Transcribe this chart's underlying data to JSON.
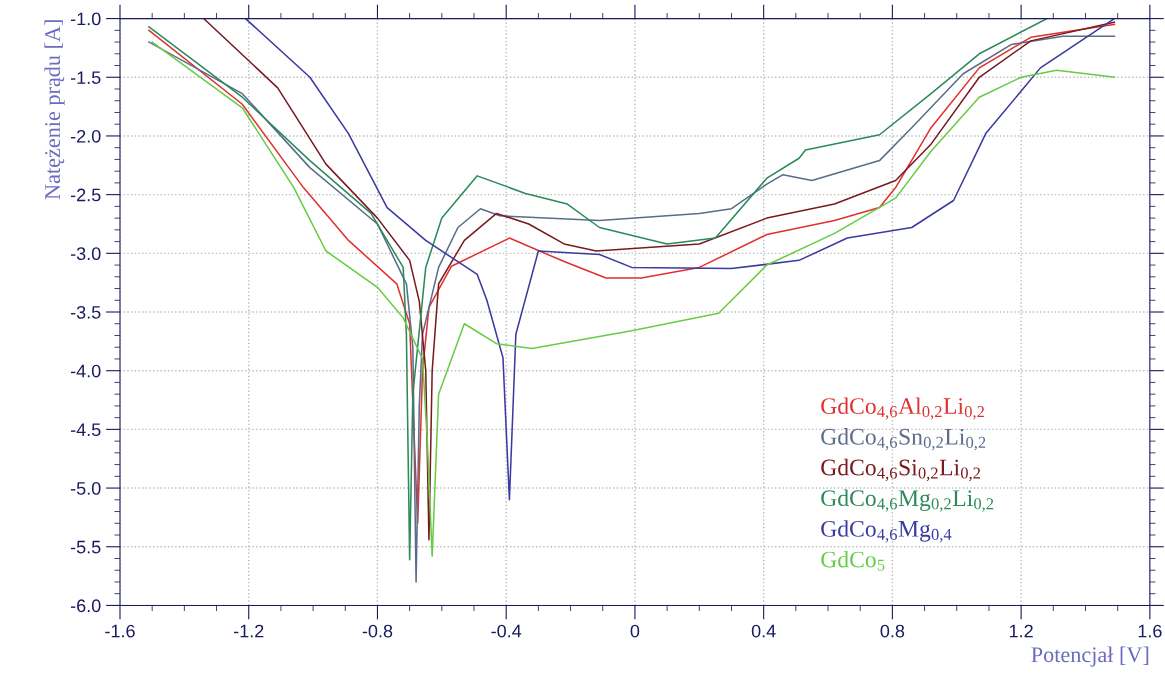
{
  "chart_data": {
    "type": "line",
    "xlabel": "Potencjał [V]",
    "ylabel": "Natężenie prądu [A]",
    "xlim": [
      -1.6,
      1.6
    ],
    "ylim": [
      -6.0,
      -1.0
    ],
    "xticks": [
      -1.6,
      -1.2,
      -0.8,
      -0.4,
      0,
      0.4,
      0.8,
      1.2,
      1.6
    ],
    "yticks": [
      {
        "value": -6,
        "label": "-6.0"
      },
      -5.5,
      {
        "value": -5,
        "label": "-5.0"
      },
      -4.5,
      {
        "value": -4,
        "label": "-4.0"
      },
      -3.5,
      {
        "value": -3,
        "label": "-3.0"
      },
      -2.5,
      {
        "value": -2,
        "label": "-2.0"
      },
      -1.5,
      {
        "value": -1,
        "label": "-1.0"
      }
    ],
    "grid": true,
    "legend": "bottom right",
    "marker": "none",
    "line_style": "solid",
    "series": [
      {
        "name": "GdCo$_{4,6}$Al$_{0,2}$Li$_{0,2}$",
        "color": "#e03030",
        "x": [
          -1.51,
          -1.22,
          -1.03,
          -0.89,
          -0.74,
          -0.7,
          -0.675,
          -0.66,
          -0.64,
          -0.57,
          -0.39,
          -0.22,
          -0.09,
          0.02,
          0.2,
          0.41,
          0.62,
          0.76,
          0.81,
          0.92,
          1.07,
          1.23,
          1.49
        ],
        "values": [
          -1.1,
          -1.73,
          -2.44,
          -2.89,
          -3.26,
          -3.6,
          -5.3,
          -4.0,
          -3.46,
          -3.11,
          -2.87,
          -3.07,
          -3.21,
          -3.21,
          -3.12,
          -2.84,
          -2.72,
          -2.61,
          -2.44,
          -1.93,
          -1.42,
          -1.16,
          -1.05
        ]
      },
      {
        "name": "GdCo$_{4,6}$Sn$_{0,2}$Li$_{0,2}$",
        "color": "#5a6c8a",
        "x": [
          -1.51,
          -1.22,
          -1.01,
          -0.8,
          -0.71,
          -0.69,
          -0.68,
          -0.67,
          -0.66,
          -0.61,
          -0.55,
          -0.48,
          -0.42,
          -0.11,
          0.2,
          0.3,
          0.41,
          0.46,
          0.55,
          0.76,
          0.86,
          1.02,
          1.17,
          1.33,
          1.49
        ],
        "values": [
          -1.2,
          -1.64,
          -2.27,
          -2.75,
          -3.26,
          -3.8,
          -5.8,
          -4.3,
          -3.69,
          -3.12,
          -2.78,
          -2.62,
          -2.68,
          -2.72,
          -2.66,
          -2.62,
          -2.41,
          -2.33,
          -2.38,
          -2.21,
          -1.93,
          -1.47,
          -1.22,
          -1.15,
          -1.15
        ]
      },
      {
        "name": "GdCo$_{4,6}$Si$_{0,2}$Li$_{0,2}$",
        "color": "#7a1a20",
        "x": [
          -1.34,
          -1.11,
          -0.96,
          -0.8,
          -0.7,
          -0.67,
          -0.65,
          -0.64,
          -0.63,
          -0.61,
          -0.53,
          -0.43,
          -0.33,
          -0.22,
          -0.12,
          0.2,
          0.41,
          0.62,
          0.81,
          0.92,
          1.07,
          1.23,
          1.49
        ],
        "values": [
          -1.0,
          -1.59,
          -2.24,
          -2.7,
          -3.06,
          -3.41,
          -4.0,
          -5.44,
          -4.0,
          -3.26,
          -2.89,
          -2.66,
          -2.75,
          -2.92,
          -2.98,
          -2.92,
          -2.7,
          -2.58,
          -2.38,
          -2.07,
          -1.5,
          -1.19,
          -1.03
        ]
      },
      {
        "name": "GdCo$_{4,6}$Mg$_{0,2}$Li$_{0,2}$",
        "color": "#2a8a5a",
        "x": [
          -1.51,
          -1.22,
          -1.01,
          -0.82,
          -0.72,
          -0.71,
          -0.7,
          -0.69,
          -0.65,
          -0.6,
          -0.49,
          -0.34,
          -0.21,
          -0.11,
          0.1,
          0.25,
          0.41,
          0.51,
          0.53,
          0.76,
          0.92,
          1.07,
          1.28
        ],
        "values": [
          -1.07,
          -1.67,
          -2.21,
          -2.66,
          -3.12,
          -3.7,
          -5.61,
          -4.2,
          -3.12,
          -2.7,
          -2.34,
          -2.49,
          -2.58,
          -2.78,
          -2.92,
          -2.87,
          -2.36,
          -2.19,
          -2.12,
          -1.99,
          -1.64,
          -1.3,
          -1.0
        ]
      },
      {
        "name": "GdCo$_{4,6}$Mg$_{0,4}$",
        "color": "#3a3aa0",
        "x": [
          -1.21,
          -1.01,
          -0.89,
          -0.77,
          -0.65,
          -0.49,
          -0.46,
          -0.41,
          -0.4,
          -0.39,
          -0.37,
          -0.3,
          -0.11,
          -0.01,
          0.3,
          0.51,
          0.66,
          0.86,
          0.99,
          1.09,
          1.26,
          1.49
        ],
        "values": [
          -1.0,
          -1.5,
          -1.98,
          -2.61,
          -2.89,
          -3.18,
          -3.4,
          -3.89,
          -4.5,
          -5.1,
          -3.69,
          -2.98,
          -3.01,
          -3.12,
          -3.13,
          -3.06,
          -2.87,
          -2.78,
          -2.55,
          -1.98,
          -1.42,
          -1.0
        ]
      },
      {
        "name": "GdCo$_{5}$",
        "color": "#66cc44",
        "x": [
          -1.5,
          -1.22,
          -1.06,
          -0.96,
          -0.8,
          -0.72,
          -0.66,
          -0.645,
          -0.63,
          -0.61,
          -0.53,
          -0.43,
          -0.32,
          -0.01,
          0.26,
          0.41,
          0.62,
          0.81,
          0.92,
          1.07,
          1.2,
          1.31,
          1.49
        ],
        "values": [
          -1.2,
          -1.76,
          -2.44,
          -2.98,
          -3.29,
          -3.55,
          -3.9,
          -4.6,
          -5.58,
          -4.2,
          -3.6,
          -3.77,
          -3.81,
          -3.66,
          -3.51,
          -3.1,
          -2.83,
          -2.53,
          -2.13,
          -1.67,
          -1.5,
          -1.44,
          -1.5
        ]
      }
    ]
  }
}
